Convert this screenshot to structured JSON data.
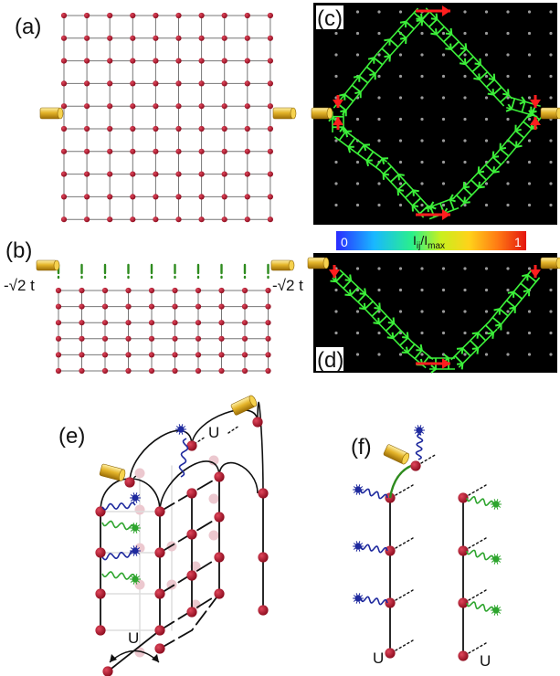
{
  "labels": {
    "a": "(a)",
    "b": "(b)",
    "c": "(c)",
    "d": "(d)",
    "e": "(e)",
    "f": "(f)"
  },
  "hopping": {
    "left": "-√2 t",
    "right": "-√2 t"
  },
  "colorbar": {
    "min": "0",
    "max": "1",
    "title": "I_ij/I_max"
  },
  "interaction_label": "U",
  "colors": {
    "site": "#b0142a",
    "site_faded": "#ecc8cf",
    "bond": "#777777",
    "special_bond": "#2e8b1e",
    "current_arrow": "#3cf03a",
    "current_arrow_max": "#ff1e1e",
    "panel_bg": "#000000",
    "panel_dot": "#9a9a9a",
    "lead": "#d9a21a",
    "spin_up": "#1f2a9e",
    "spin_down": "#2ea52e"
  }
}
